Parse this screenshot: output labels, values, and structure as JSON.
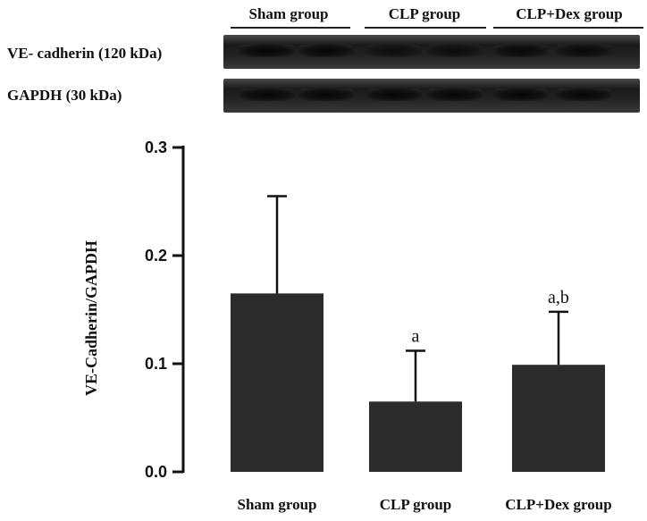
{
  "blot": {
    "groups": [
      "Sham group",
      "CLP group",
      "CLP+Dex group"
    ],
    "bands": [
      {
        "label": "VE- cadherin (120 kDa)",
        "intensity": [
          1.0,
          0.95,
          0.55,
          0.6,
          0.85,
          0.8
        ]
      },
      {
        "label": "GAPDH (30 kDa)",
        "intensity": [
          1.0,
          1.0,
          1.0,
          1.0,
          1.0,
          1.0
        ]
      }
    ]
  },
  "chart_data": {
    "type": "bar",
    "categories": [
      "Sham group",
      "CLP group",
      "CLP+Dex group"
    ],
    "values": [
      0.165,
      0.065,
      0.099
    ],
    "error_upper": [
      0.255,
      0.112,
      0.148
    ],
    "annotations": [
      "",
      "a",
      "a,b"
    ],
    "ylabel": "VE-Cadherin/GAPDH",
    "xlabel": "",
    "ylim": [
      0,
      0.3
    ],
    "yticks": [
      "0.0",
      "0.1",
      "0.2",
      "0.3"
    ],
    "bar_color": "#2b2b2b"
  }
}
